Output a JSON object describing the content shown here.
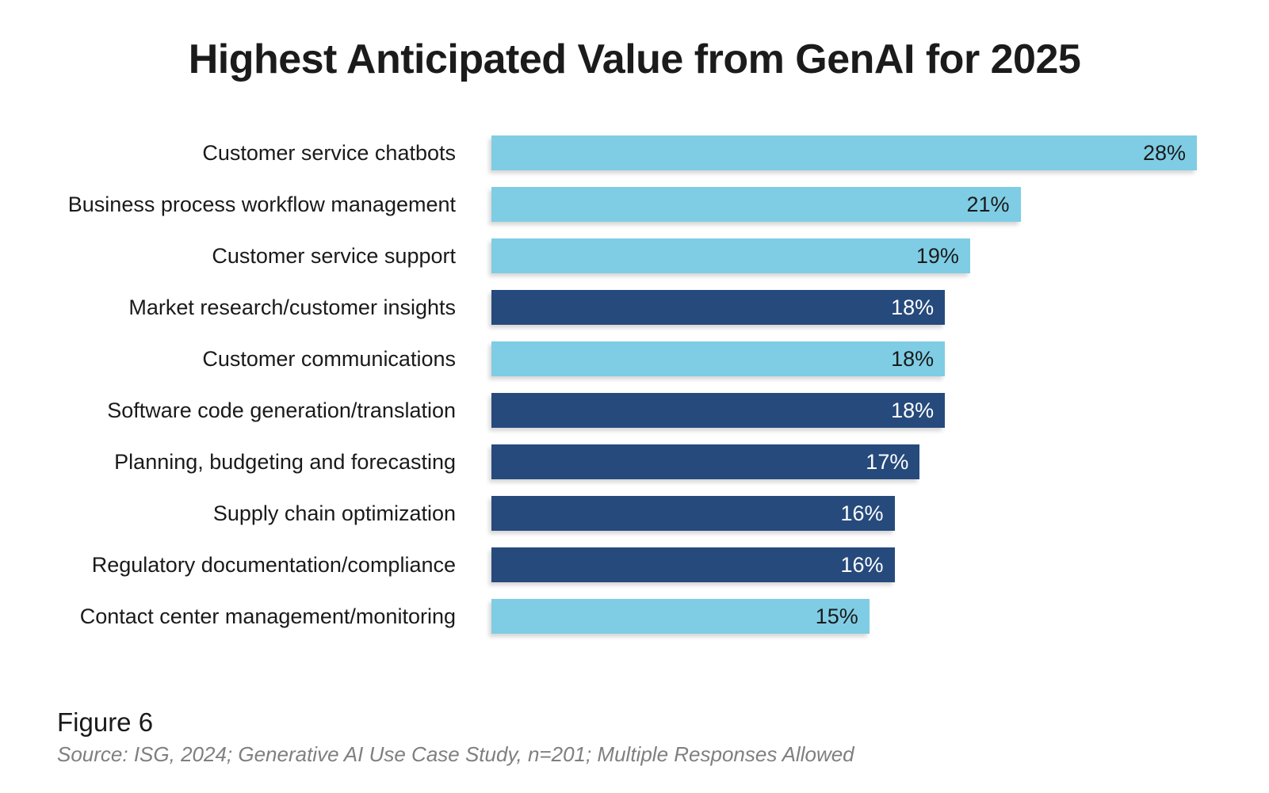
{
  "title": "Highest Anticipated Value from GenAI for 2025",
  "footer": {
    "figure_label": "Figure 6",
    "source": "Source: ISG, 2024; Generative AI Use Case Study, n=201; Multiple Responses Allowed"
  },
  "colors": {
    "bar_light": "#7FCDE4",
    "bar_dark": "#264A7C",
    "value_text_on_light": "#1a1a1a",
    "value_text_on_dark": "#ffffff",
    "title_text": "#1b1b1b",
    "label_text": "#1a1a1a",
    "source_text": "#7f7f7f"
  },
  "chart_data": {
    "type": "bar",
    "orientation": "horizontal",
    "title": "Highest Anticipated Value from GenAI for 2025",
    "xlabel": "",
    "ylabel": "",
    "xlim": [
      0,
      28
    ],
    "grid": false,
    "legend": false,
    "categories": [
      "Customer service chatbots",
      "Business process workflow management",
      "Customer service support",
      "Market research/customer insights",
      "Customer communications",
      "Software code generation/translation",
      "Planning, budgeting and forecasting",
      "Supply chain optimization",
      "Regulatory documentation/compliance",
      "Contact center management/monitoring"
    ],
    "values": [
      28,
      21,
      19,
      18,
      18,
      18,
      17,
      16,
      16,
      15
    ],
    "value_labels": [
      "28%",
      "21%",
      "19%",
      "18%",
      "18%",
      "18%",
      "17%",
      "16%",
      "16%",
      "15%"
    ],
    "bar_color_keys": [
      "light",
      "light",
      "light",
      "dark",
      "light",
      "dark",
      "dark",
      "dark",
      "dark",
      "light"
    ]
  }
}
